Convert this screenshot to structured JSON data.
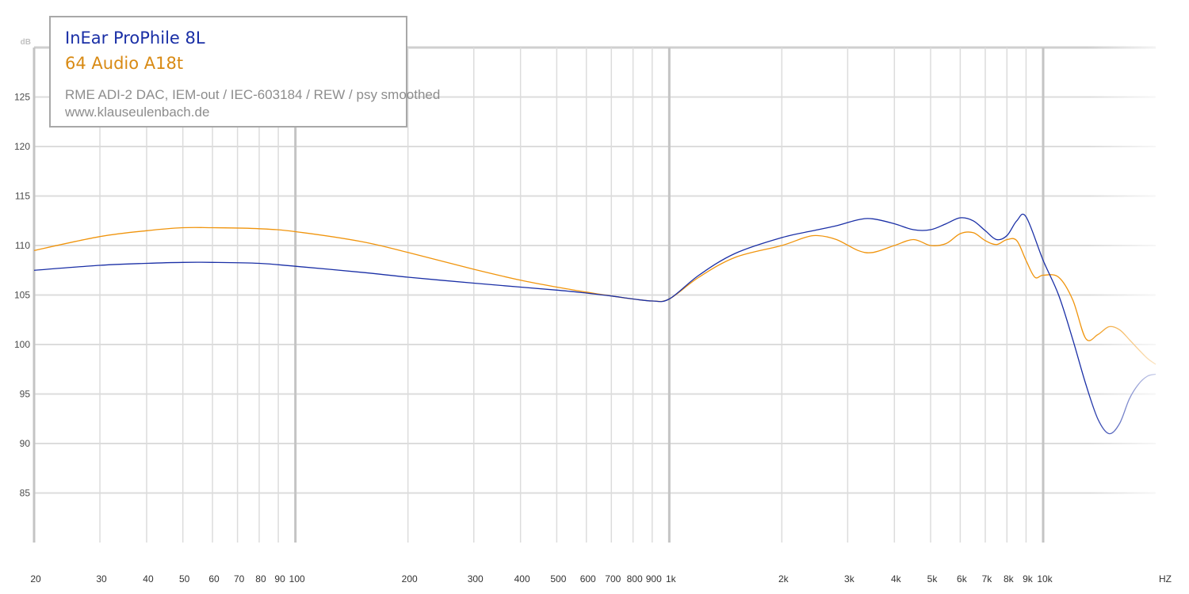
{
  "chart_data": {
    "type": "line",
    "ylabel": "dB",
    "xunit": "HZ",
    "xscale": "log",
    "xlim": [
      20,
      20000
    ],
    "ylim": [
      80,
      130
    ],
    "grid": true,
    "yticks": [
      85,
      90,
      95,
      100,
      105,
      110,
      115,
      120,
      125
    ],
    "xticks": [
      {
        "value": 20,
        "label": "20"
      },
      {
        "value": 30,
        "label": "30"
      },
      {
        "value": 40,
        "label": "40"
      },
      {
        "value": 50,
        "label": "50"
      },
      {
        "value": 60,
        "label": "60"
      },
      {
        "value": 70,
        "label": "70"
      },
      {
        "value": 80,
        "label": "80"
      },
      {
        "value": 90,
        "label": "90"
      },
      {
        "value": 100,
        "label": "100"
      },
      {
        "value": 200,
        "label": "200"
      },
      {
        "value": 300,
        "label": "300"
      },
      {
        "value": 400,
        "label": "400"
      },
      {
        "value": 500,
        "label": "500"
      },
      {
        "value": 600,
        "label": "600"
      },
      {
        "value": 700,
        "label": "700"
      },
      {
        "value": 800,
        "label": "800"
      },
      {
        "value": 900,
        "label": "900"
      },
      {
        "value": 1000,
        "label": "1k"
      },
      {
        "value": 2000,
        "label": "2k"
      },
      {
        "value": 3000,
        "label": "3k"
      },
      {
        "value": 4000,
        "label": "4k"
      },
      {
        "value": 5000,
        "label": "5k"
      },
      {
        "value": 6000,
        "label": "6k"
      },
      {
        "value": 7000,
        "label": "7k"
      },
      {
        "value": 8000,
        "label": "8k"
      },
      {
        "value": 9000,
        "label": "9k"
      },
      {
        "value": 10000,
        "label": "10k"
      }
    ],
    "legend": {
      "position": "top-left",
      "entries": [
        "InEar ProPhile 8L",
        "64 Audio A18t"
      ],
      "notes": [
        "RME ADI-2 DAC, IEM-out / IEC-603184 / REW / psy smoothed",
        "www.klauseulenbach.de"
      ]
    },
    "series": [
      {
        "name": "InEar ProPhile 8L",
        "color": "#1a2fa6",
        "x": [
          20,
          30,
          40,
          50,
          60,
          80,
          100,
          150,
          200,
          300,
          400,
          500,
          600,
          700,
          800,
          900,
          1000,
          1200,
          1500,
          2000,
          2500,
          2800,
          3200,
          3500,
          4000,
          4500,
          5000,
          5500,
          6000,
          6500,
          7000,
          7500,
          8000,
          8500,
          9000,
          10000,
          11000,
          12000,
          13000,
          14000,
          15000,
          16000,
          17000,
          18000,
          19000,
          20000
        ],
        "y": [
          107.5,
          108.0,
          108.2,
          108.3,
          108.3,
          108.2,
          107.9,
          107.3,
          106.8,
          106.2,
          105.8,
          105.5,
          105.2,
          104.9,
          104.6,
          104.4,
          104.6,
          107.0,
          109.2,
          110.8,
          111.6,
          112.0,
          112.6,
          112.7,
          112.2,
          111.6,
          111.6,
          112.2,
          112.8,
          112.5,
          111.5,
          110.6,
          111.0,
          112.5,
          112.9,
          108.5,
          105.0,
          100.5,
          96.0,
          92.5,
          91.0,
          92.0,
          94.5,
          96.0,
          96.8,
          97.0
        ]
      },
      {
        "name": "64 Audio A18t",
        "color": "#f0940c",
        "x": [
          20,
          30,
          40,
          50,
          60,
          80,
          100,
          150,
          200,
          300,
          400,
          500,
          600,
          700,
          800,
          900,
          1000,
          1200,
          1500,
          2000,
          2300,
          2500,
          2800,
          3200,
          3500,
          4000,
          4500,
          5000,
          5500,
          6000,
          6500,
          7000,
          7500,
          8000,
          8500,
          9000,
          9500,
          10000,
          11000,
          12000,
          13000,
          14000,
          15000,
          16000,
          17000,
          18000,
          19000,
          20000
        ],
        "y": [
          109.5,
          110.9,
          111.5,
          111.8,
          111.8,
          111.7,
          111.4,
          110.4,
          109.3,
          107.6,
          106.5,
          105.8,
          105.3,
          104.9,
          104.6,
          104.4,
          104.6,
          106.8,
          108.8,
          110.0,
          110.8,
          111.0,
          110.6,
          109.5,
          109.3,
          110.0,
          110.6,
          110.0,
          110.2,
          111.2,
          111.3,
          110.5,
          110.1,
          110.6,
          110.5,
          108.5,
          106.8,
          107.0,
          106.8,
          104.5,
          100.6,
          101.0,
          101.8,
          101.5,
          100.5,
          99.5,
          98.6,
          98.0
        ]
      }
    ]
  }
}
